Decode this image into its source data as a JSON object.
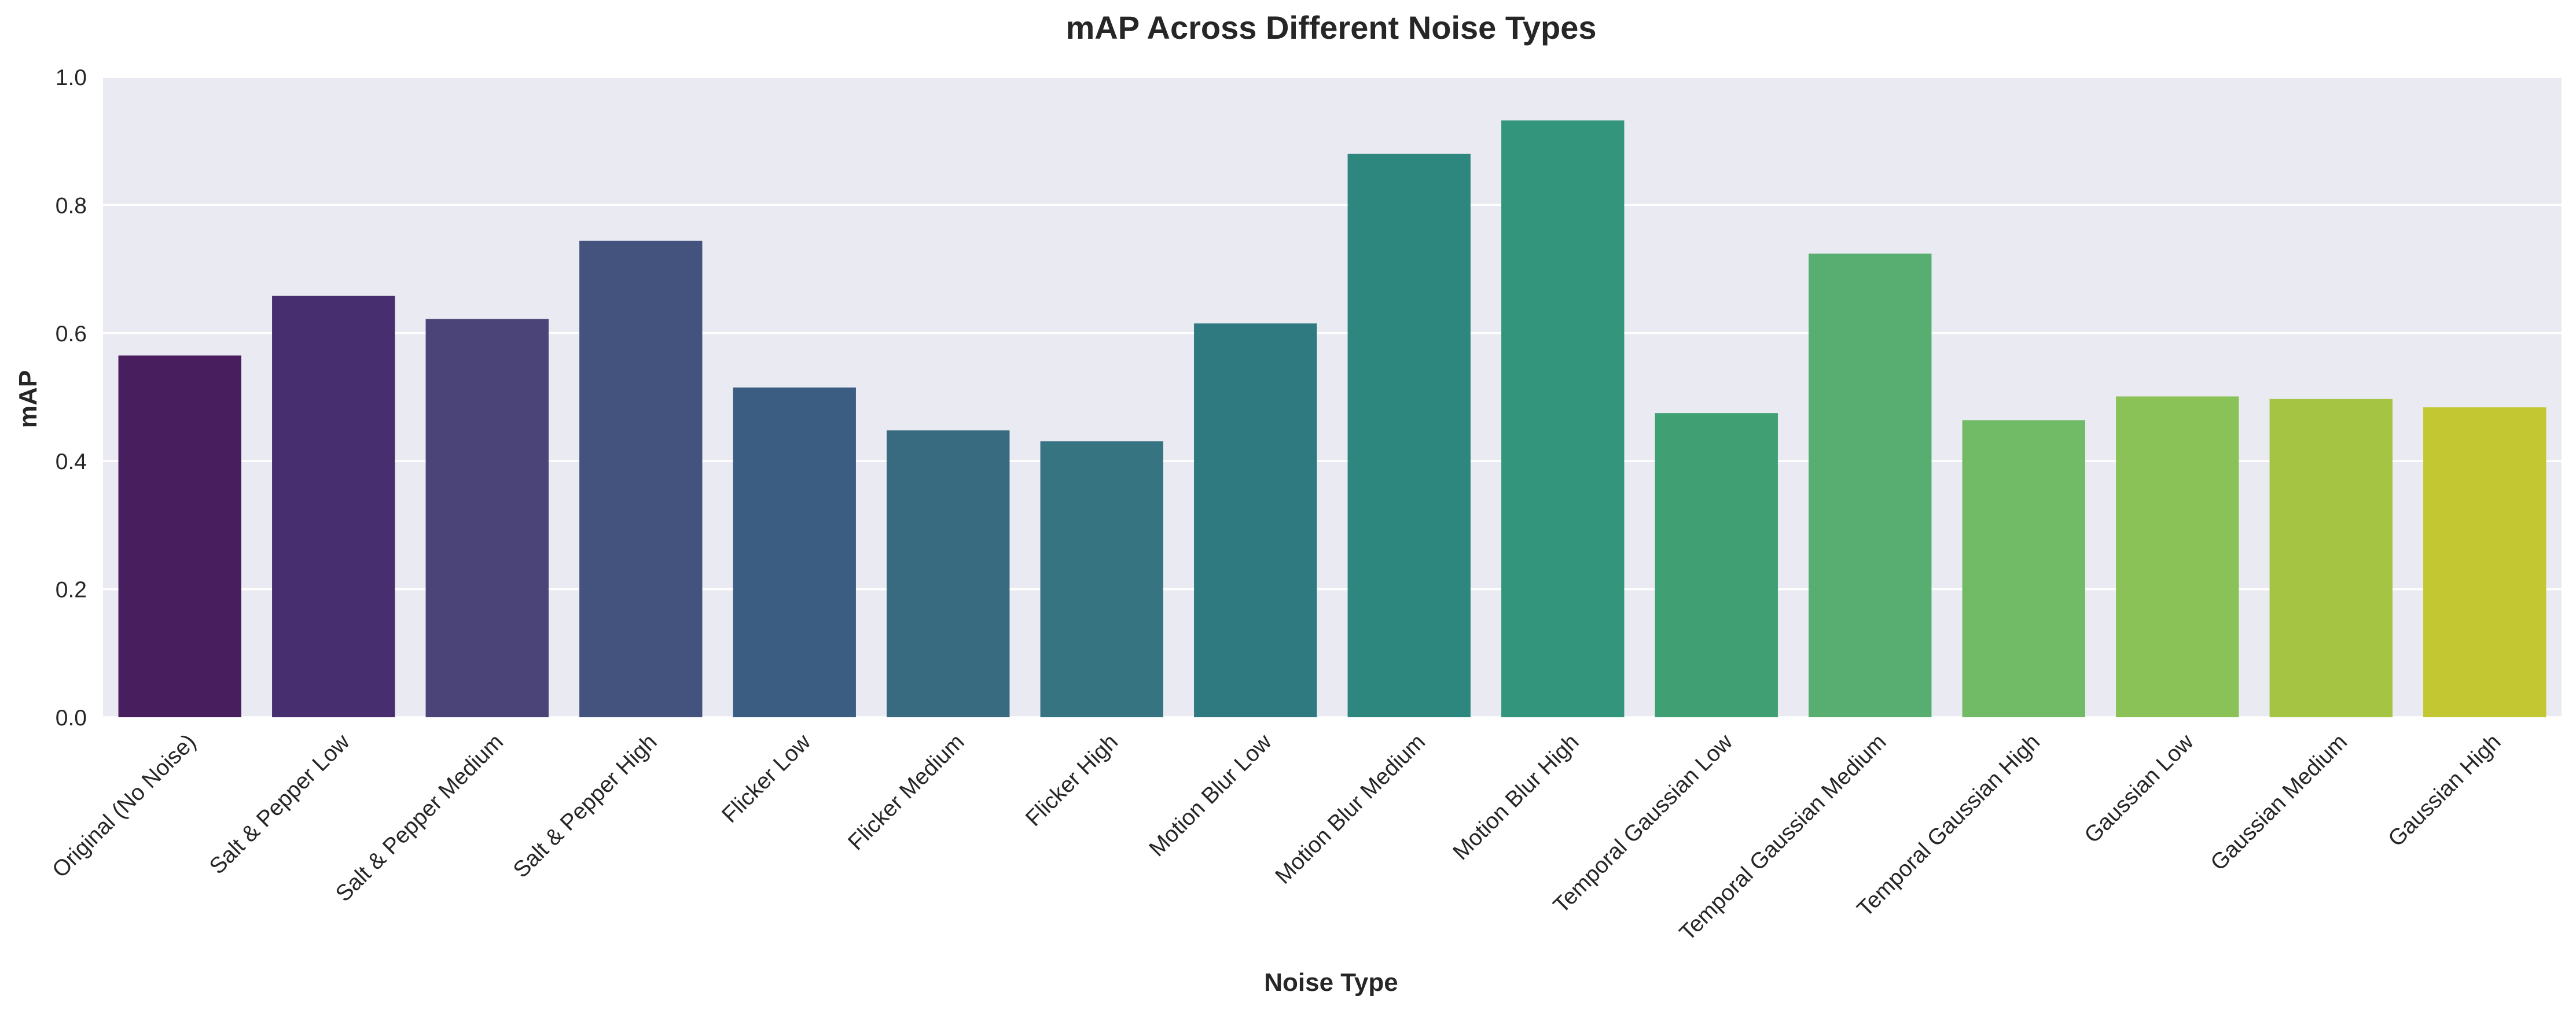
{
  "chart_data": {
    "type": "bar",
    "title": "mAP Across Different Noise Types",
    "xlabel": "Noise Type",
    "ylabel": "mAP",
    "ylim": [
      0,
      1.0
    ],
    "yticks": [
      "0.0",
      "0.2",
      "0.4",
      "0.6",
      "0.8",
      "1.0"
    ],
    "grid": true,
    "categories": [
      "Original (No Noise)",
      "Salt & Pepper Low",
      "Salt & Pepper Medium",
      "Salt & Pepper High",
      "Flicker Low",
      "Flicker Medium",
      "Flicker High",
      "Motion Blur Low",
      "Motion Blur Medium",
      "Motion Blur High",
      "Temporal Gaussian Low",
      "Temporal Gaussian Medium",
      "Temporal Gaussian High",
      "Gaussian Low",
      "Gaussian Medium",
      "Gaussian High"
    ],
    "values": [
      0.565,
      0.658,
      0.622,
      0.744,
      0.515,
      0.448,
      0.431,
      0.615,
      0.88,
      0.932,
      0.475,
      0.724,
      0.464,
      0.501,
      0.497,
      0.484
    ],
    "colors": [
      "#481e5e",
      "#472f6f",
      "#4a4479",
      "#44527e",
      "#3c5d82",
      "#386a80",
      "#377482",
      "#2f7a80",
      "#2d877e",
      "#33957c",
      "#40a073",
      "#57ae70",
      "#71ba66",
      "#8ac258",
      "#a6c444",
      "#c3c832"
    ]
  }
}
